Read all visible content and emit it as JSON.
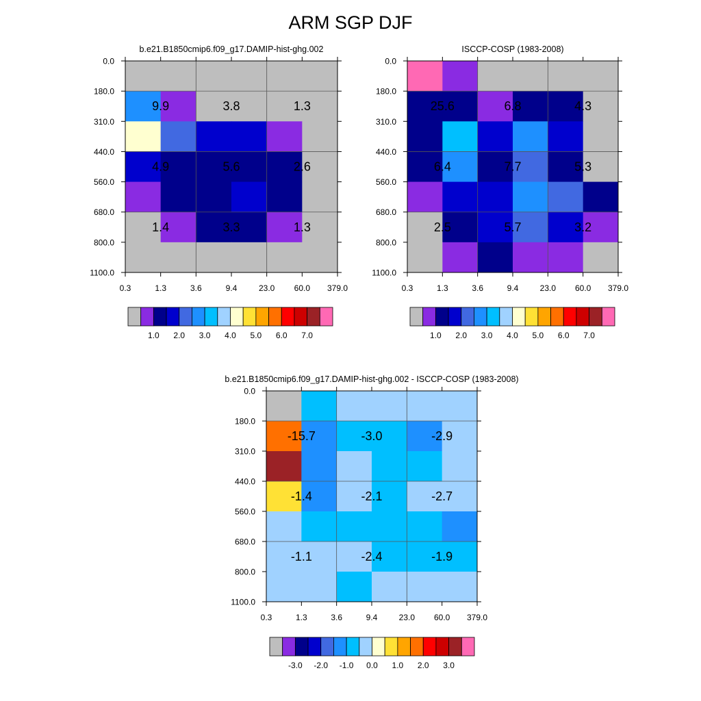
{
  "figure": {
    "title": "ARM SGP DJF"
  },
  "palettes": {
    "abs": [
      "#bebebe",
      "#8a2be2",
      "#00008b",
      "#0000cd",
      "#4169e1",
      "#1e90ff",
      "#00bfff",
      "#a0d2ff",
      "#ffffd0",
      "#ffe135",
      "#ffa500",
      "#ff7000",
      "#ff0000",
      "#cd0000",
      "#9b2226",
      "#ff69b4"
    ],
    "diff": [
      "#bebebe",
      "#8a2be2",
      "#00008b",
      "#0000cd",
      "#4169e1",
      "#1e90ff",
      "#00bfff",
      "#a0d2ff",
      "#ffffd0",
      "#ffe135",
      "#ffa500",
      "#ff7000",
      "#ff0000",
      "#cd0000",
      "#9b2226",
      "#ff69b4"
    ]
  },
  "chart_data": [
    {
      "type": "heatmap",
      "title": "b.e21.B1850cmip6.f09_g17.DAMIP-hist-ghg.002",
      "x_ticks": [
        "0.3",
        "1.3",
        "3.6",
        "9.4",
        "23.0",
        "60.0",
        "379.0"
      ],
      "y_ticks": [
        "0.0",
        "180.0",
        "310.0",
        "440.0",
        "560.0",
        "680.0",
        "800.0",
        "1100.0"
      ],
      "colorbar_labels": [
        "1.0",
        "2.0",
        "3.0",
        "4.0",
        "5.0",
        "6.0",
        "7.0"
      ],
      "colorbar_palette": "abs",
      "cell_color_index": [
        [
          0,
          0,
          0,
          0,
          0,
          0
        ],
        [
          5,
          1,
          0,
          0,
          0,
          0
        ],
        [
          8,
          4,
          3,
          3,
          1,
          0
        ],
        [
          3,
          2,
          2,
          2,
          2,
          0
        ],
        [
          1,
          2,
          2,
          3,
          2,
          0
        ],
        [
          0,
          1,
          2,
          2,
          1,
          0
        ],
        [
          0,
          0,
          0,
          0,
          0,
          0
        ]
      ],
      "annotations": [
        {
          "text": "9.9",
          "col": 1,
          "row": 1
        },
        {
          "text": "3.8",
          "col": 3,
          "row": 1
        },
        {
          "text": "1.3",
          "col": 5,
          "row": 1
        },
        {
          "text": "4.9",
          "col": 1,
          "row": 3
        },
        {
          "text": "5.6",
          "col": 3,
          "row": 3
        },
        {
          "text": "2.6",
          "col": 5,
          "row": 3
        },
        {
          "text": "1.4",
          "col": 1,
          "row": 5
        },
        {
          "text": "3.3",
          "col": 3,
          "row": 5
        },
        {
          "text": "1.3",
          "col": 5,
          "row": 5
        }
      ]
    },
    {
      "type": "heatmap",
      "title": "ISCCP-COSP (1983-2008)",
      "x_ticks": [
        "0.3",
        "1.3",
        "3.6",
        "9.4",
        "23.0",
        "60.0",
        "379.0"
      ],
      "y_ticks": [
        "0.0",
        "180.0",
        "310.0",
        "440.0",
        "560.0",
        "680.0",
        "800.0",
        "1100.0"
      ],
      "colorbar_labels": [
        "1.0",
        "2.0",
        "3.0",
        "4.0",
        "5.0",
        "6.0",
        "7.0"
      ],
      "colorbar_palette": "abs",
      "cell_color_index": [
        [
          15,
          1,
          0,
          0,
          0,
          0
        ],
        [
          2,
          2,
          1,
          2,
          2,
          0
        ],
        [
          2,
          6,
          3,
          5,
          3,
          0
        ],
        [
          2,
          5,
          2,
          4,
          2,
          0
        ],
        [
          1,
          3,
          3,
          5,
          4,
          2
        ],
        [
          0,
          2,
          3,
          4,
          3,
          1
        ],
        [
          0,
          1,
          2,
          1,
          1,
          0
        ]
      ],
      "annotations": [
        {
          "text": "25.6",
          "col": 1,
          "row": 1
        },
        {
          "text": "6.8",
          "col": 3,
          "row": 1
        },
        {
          "text": "4.3",
          "col": 5,
          "row": 1
        },
        {
          "text": "6.4",
          "col": 1,
          "row": 3
        },
        {
          "text": "7.7",
          "col": 3,
          "row": 3
        },
        {
          "text": "5.3",
          "col": 5,
          "row": 3
        },
        {
          "text": "2.5",
          "col": 1,
          "row": 5
        },
        {
          "text": "5.7",
          "col": 3,
          "row": 5
        },
        {
          "text": "3.2",
          "col": 5,
          "row": 5
        }
      ]
    },
    {
      "type": "heatmap",
      "title": "b.e21.B1850cmip6.f09_g17.DAMIP-hist-ghg.002 - ISCCP-COSP (1983-2008)",
      "x_ticks": [
        "0.3",
        "1.3",
        "3.6",
        "9.4",
        "23.0",
        "60.0",
        "379.0"
      ],
      "y_ticks": [
        "0.0",
        "180.0",
        "310.0",
        "440.0",
        "560.0",
        "680.0",
        "800.0",
        "1100.0"
      ],
      "colorbar_labels": [
        "-3.0",
        "-2.0",
        "-1.0",
        "0.0",
        "1.0",
        "2.0",
        "3.0"
      ],
      "colorbar_palette": "diff",
      "cell_color_index": [
        [
          0,
          6,
          7,
          7,
          7,
          7
        ],
        [
          11,
          5,
          6,
          6,
          5,
          7
        ],
        [
          14,
          5,
          7,
          6,
          6,
          7
        ],
        [
          9,
          5,
          7,
          6,
          7,
          7
        ],
        [
          7,
          6,
          6,
          6,
          6,
          5
        ],
        [
          7,
          7,
          7,
          6,
          6,
          6
        ],
        [
          7,
          7,
          6,
          7,
          7,
          7
        ]
      ],
      "annotations": [
        {
          "text": "-15.7",
          "col": 1,
          "row": 1
        },
        {
          "text": "-3.0",
          "col": 3,
          "row": 1
        },
        {
          "text": "-2.9",
          "col": 5,
          "row": 1
        },
        {
          "text": "-1.4",
          "col": 1,
          "row": 3
        },
        {
          "text": "-2.1",
          "col": 3,
          "row": 3
        },
        {
          "text": "-2.7",
          "col": 5,
          "row": 3
        },
        {
          "text": "-1.1",
          "col": 1,
          "row": 5
        },
        {
          "text": "-2.4",
          "col": 3,
          "row": 5
        },
        {
          "text": "-1.9",
          "col": 5,
          "row": 5
        }
      ]
    }
  ]
}
